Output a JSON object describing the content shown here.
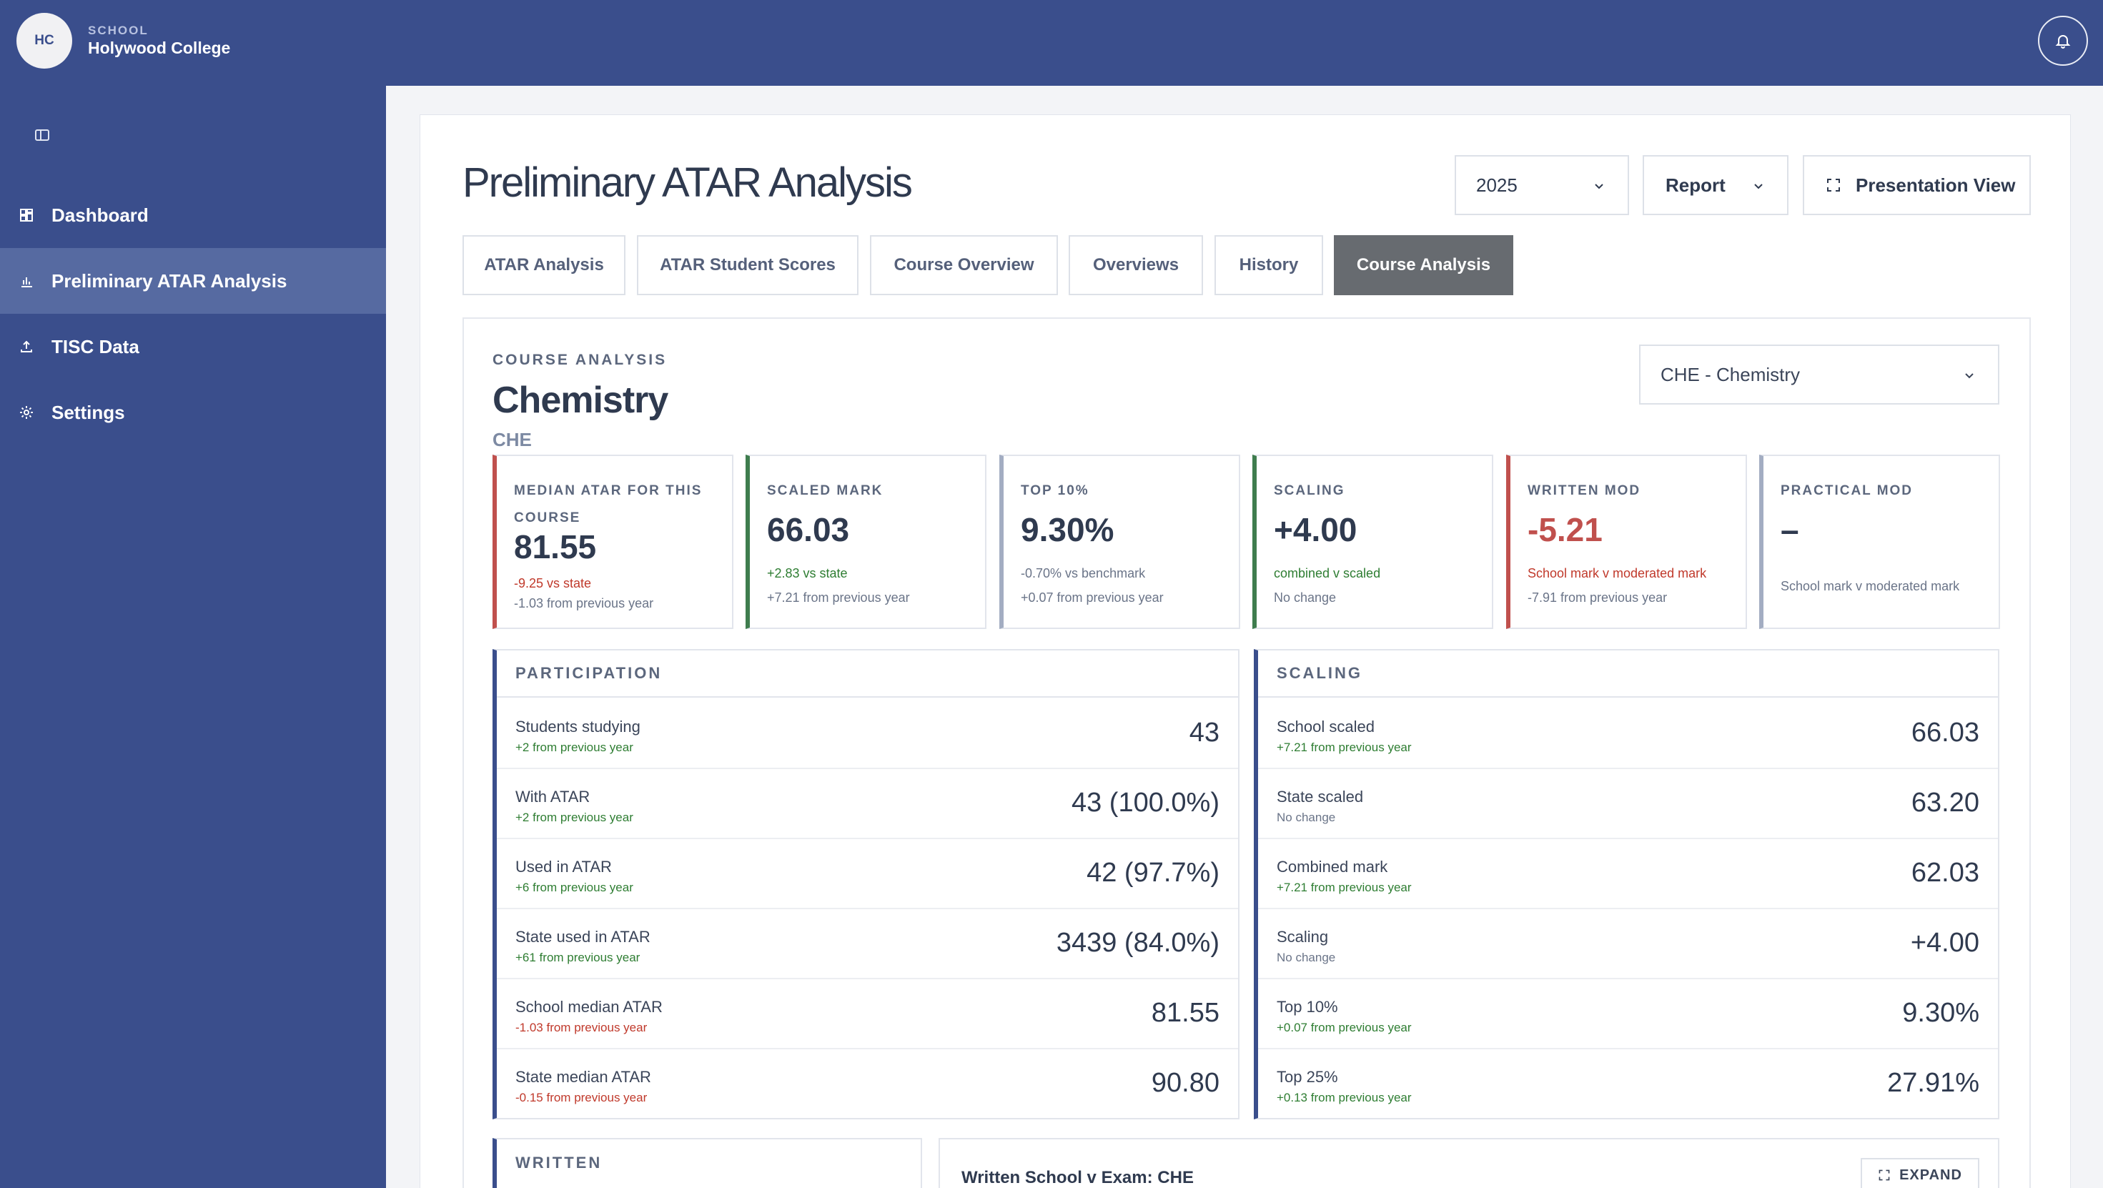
{
  "header": {
    "logo_initials": "HC",
    "school_label": "SCHOOL",
    "school_name": "Holywood College",
    "bell_icon": "bell-icon"
  },
  "sidebar": {
    "items": [
      {
        "label": "Dashboard",
        "icon": "dashboard-icon",
        "active": false
      },
      {
        "label": "Preliminary ATAR Analysis",
        "icon": "bar-chart-icon",
        "active": true
      },
      {
        "label": "TISC Data",
        "icon": "upload-icon",
        "active": false
      },
      {
        "label": "Settings",
        "icon": "gear-icon",
        "active": false
      }
    ]
  },
  "page": {
    "title": "Preliminary ATAR Analysis",
    "year_select": "2025",
    "report_label": "Report",
    "presentation_label": "Presentation View"
  },
  "tabs": [
    {
      "label": "ATAR Analysis",
      "active": false
    },
    {
      "label": "ATAR Student Scores",
      "active": false
    },
    {
      "label": "Course Overview",
      "active": false
    },
    {
      "label": "Overviews",
      "active": false
    },
    {
      "label": "History",
      "active": false
    },
    {
      "label": "Course Analysis",
      "active": true
    }
  ],
  "course": {
    "eyebrow": "COURSE ANALYSIS",
    "name": "Chemistry",
    "code": "CHE",
    "select_value": "CHE - Chemistry"
  },
  "stats": [
    {
      "label": "MEDIAN ATAR FOR THIS COURSE",
      "value": "81.55",
      "sub1": "-9.25 vs state",
      "sub1_tone": "red",
      "sub2": "-1.03 from previous year",
      "accent": "#c0504d"
    },
    {
      "label": "SCALED MARK",
      "value": "66.03",
      "sub1": "+2.83 vs state",
      "sub1_tone": "green",
      "sub2": "+7.21 from previous year",
      "accent": "#3f7d4e"
    },
    {
      "label": "TOP 10%",
      "value": "9.30%",
      "sub1": "-0.70% vs benchmark",
      "sub1_tone": "grey",
      "sub2": "+0.07 from previous year",
      "accent": "#a3adc2"
    },
    {
      "label": "SCALING",
      "value": "+4.00",
      "sub1": "combined v scaled",
      "sub1_tone": "green",
      "sub2": "No change",
      "accent": "#3f7d4e"
    },
    {
      "label": "WRITTEN MOD",
      "value": "-5.21",
      "sub1": "School mark v moderated mark",
      "sub1_tone": "red",
      "sub2": "-7.91 from previous year",
      "accent": "#c0504d",
      "value_tone": "red"
    },
    {
      "label": "PRACTICAL MOD",
      "value": "–",
      "sub1": "School mark v moderated mark",
      "sub1_tone": "grey",
      "sub2": "",
      "accent": "#a3adc2"
    }
  ],
  "participation": {
    "title": "PARTICIPATION",
    "rows": [
      {
        "label": "Students studying",
        "sub": "+2 from previous year",
        "tone": "green",
        "value": "43"
      },
      {
        "label": "With ATAR",
        "sub": "+2 from previous year",
        "tone": "green",
        "value": "43 (100.0%)"
      },
      {
        "label": "Used in ATAR",
        "sub": "+6 from previous year",
        "tone": "green",
        "value": "42 (97.7%)"
      },
      {
        "label": "State used in ATAR",
        "sub": "+61 from previous year",
        "tone": "green",
        "value": "3439 (84.0%)"
      },
      {
        "label": "School median ATAR",
        "sub": "-1.03 from previous year",
        "tone": "red",
        "value": "81.55"
      },
      {
        "label": "State median ATAR",
        "sub": "-0.15 from previous year",
        "tone": "red",
        "value": "90.80"
      }
    ]
  },
  "scaling": {
    "title": "SCALING",
    "rows": [
      {
        "label": "School scaled",
        "sub": "+7.21 from previous year",
        "tone": "green",
        "value": "66.03"
      },
      {
        "label": "State scaled",
        "sub": "No change",
        "tone": "grey",
        "value": "63.20"
      },
      {
        "label": "Combined mark",
        "sub": "+7.21 from previous year",
        "tone": "green",
        "value": "62.03"
      },
      {
        "label": "Scaling",
        "sub": "No change",
        "tone": "grey",
        "value": "+4.00"
      },
      {
        "label": "Top 10%",
        "sub": "+0.07 from previous year",
        "tone": "green",
        "value": "9.30%"
      },
      {
        "label": "Top 25%",
        "sub": "+0.13 from previous year",
        "tone": "green",
        "value": "27.91%"
      }
    ]
  },
  "written": {
    "title": "WRITTEN"
  },
  "chart_panel": {
    "title": "Written School v Exam: CHE",
    "expand_label": "EXPAND"
  }
}
